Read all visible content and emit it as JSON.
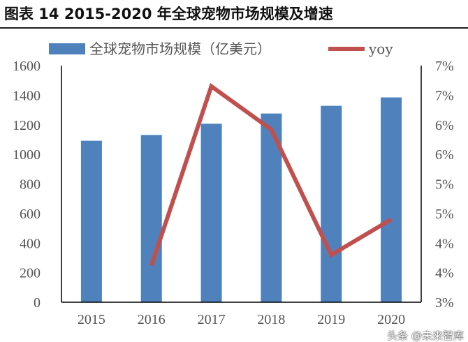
{
  "header": {
    "title": "图表 14 2015-2020 年全球宠物市场规模及增速"
  },
  "watermark": "头条 @未来智库",
  "chart_data": {
    "type": "bar",
    "title": "图表 14 2015-2020 年全球宠物市场规模及增速",
    "categories": [
      "2015",
      "2016",
      "2017",
      "2018",
      "2019",
      "2020"
    ],
    "series": [
      {
        "name": "全球宠物市场规模（亿美元）",
        "type": "bar",
        "axis": "left",
        "color": "#4F81BD",
        "values": [
          1092,
          1131,
          1207,
          1276,
          1328,
          1385
        ]
      },
      {
        "name": "yoy",
        "type": "line",
        "axis": "right",
        "color": "#C0504D",
        "values": [
          null,
          3.62,
          6.65,
          5.92,
          3.8,
          4.4
        ]
      }
    ],
    "y_left": {
      "range": [
        0,
        1600
      ],
      "ticks": [
        "0",
        "200",
        "400",
        "600",
        "800",
        "1000",
        "1200",
        "1400",
        "1600"
      ]
    },
    "y_right": {
      "range": [
        3,
        7
      ],
      "unit": "%",
      "ticks": [
        "3%",
        "4%",
        "4%",
        "5%",
        "5%",
        "6%",
        "6%",
        "7%",
        "7%"
      ]
    },
    "legend": "top",
    "grid": false
  }
}
